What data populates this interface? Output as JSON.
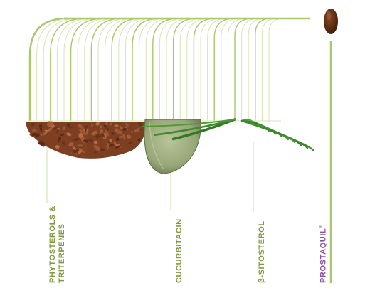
{
  "labels": {
    "phytosterols_line1": "PHYTOSTEROLS &",
    "phytosterols_line2": "TRITERPENES",
    "cucurbitacin": "CUCURBITACIN",
    "sitosterol": "β-SITOSTEROL",
    "prostaquil": "PROSTAQUIL",
    "prostaquil_mark": "®"
  },
  "colors": {
    "line_green": "#a9c96a",
    "line_light": "#d6e6b4",
    "label_green": "#7f9a3e",
    "label_purple": "#8a4fa8",
    "bark": "#8a4a2c",
    "seed": "#9cab7f",
    "palm": "#3f8a2c",
    "capsule": "#5a2e14"
  },
  "icons": [
    "bark-chips-image",
    "pumpkin-seed-image",
    "palm-leaf-image",
    "capsule-image"
  ]
}
